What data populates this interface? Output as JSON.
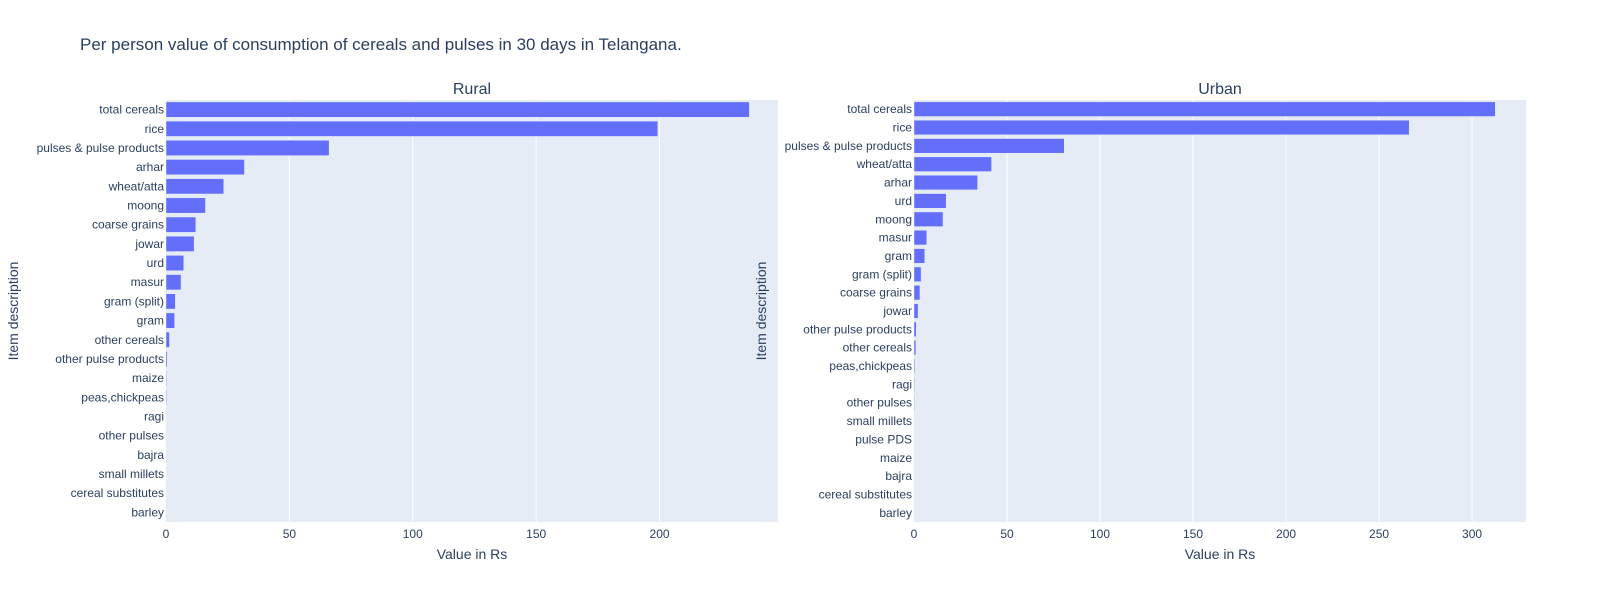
{
  "chart_data": {
    "type": "bar",
    "orientation": "horizontal",
    "title": "Per person value of consumption of cereals and pulses in 30 days in Telangana.",
    "colors": {
      "bar": "#636efa",
      "plot_bg": "#e5ecf6",
      "grid": "#ffffff",
      "text": "#2a3f5f"
    },
    "grid": true,
    "legend": "none",
    "panels": [
      {
        "subtitle": "Rural",
        "xlabel": "Value in Rs",
        "ylabel": "Item description",
        "xlim": [
          0,
          248
        ],
        "xticks": [
          0,
          50,
          100,
          150,
          200
        ],
        "categories": [
          "total cereals",
          "rice",
          "pulses & pulse products",
          "arhar",
          "wheat/atta",
          "moong",
          "coarse grains",
          "jowar",
          "urd",
          "masur",
          "gram (split)",
          "gram",
          "other cereals",
          "other pulse products",
          "maize",
          "peas,chickpeas",
          "ragi",
          "other pulses",
          "bajra",
          "small millets",
          "cereal substitutes",
          "barley"
        ],
        "values": [
          236.4,
          199.3,
          66.1,
          31.8,
          23.4,
          16.0,
          12.1,
          11.4,
          7.2,
          6.1,
          3.8,
          3.5,
          1.4,
          0.5,
          0.3,
          0.3,
          0.2,
          0.2,
          0.1,
          0.1,
          0.05,
          0.02
        ]
      },
      {
        "subtitle": "Urban",
        "xlabel": "Value in Rs",
        "ylabel": "Item description",
        "xlim": [
          0,
          329
        ],
        "xticks": [
          0,
          50,
          100,
          150,
          200,
          250,
          300
        ],
        "categories": [
          "total cereals",
          "rice",
          "pulses & pulse products",
          "wheat/atta",
          "arhar",
          "urd",
          "moong",
          "masur",
          "gram",
          "gram (split)",
          "coarse grains",
          "jowar",
          "other pulse products",
          "other cereals",
          "peas,chickpeas",
          "ragi",
          "other pulses",
          "small millets",
          "pulse PDS",
          "maize",
          "bajra",
          "cereal substitutes",
          "barley"
        ],
        "values": [
          312.5,
          266.2,
          80.8,
          41.7,
          34.2,
          17.3,
          15.6,
          6.9,
          5.8,
          3.8,
          3.2,
          2.2,
          1.2,
          1.0,
          0.5,
          0.4,
          0.3,
          0.2,
          0.2,
          0.15,
          0.1,
          0.05,
          0.03
        ]
      }
    ]
  }
}
